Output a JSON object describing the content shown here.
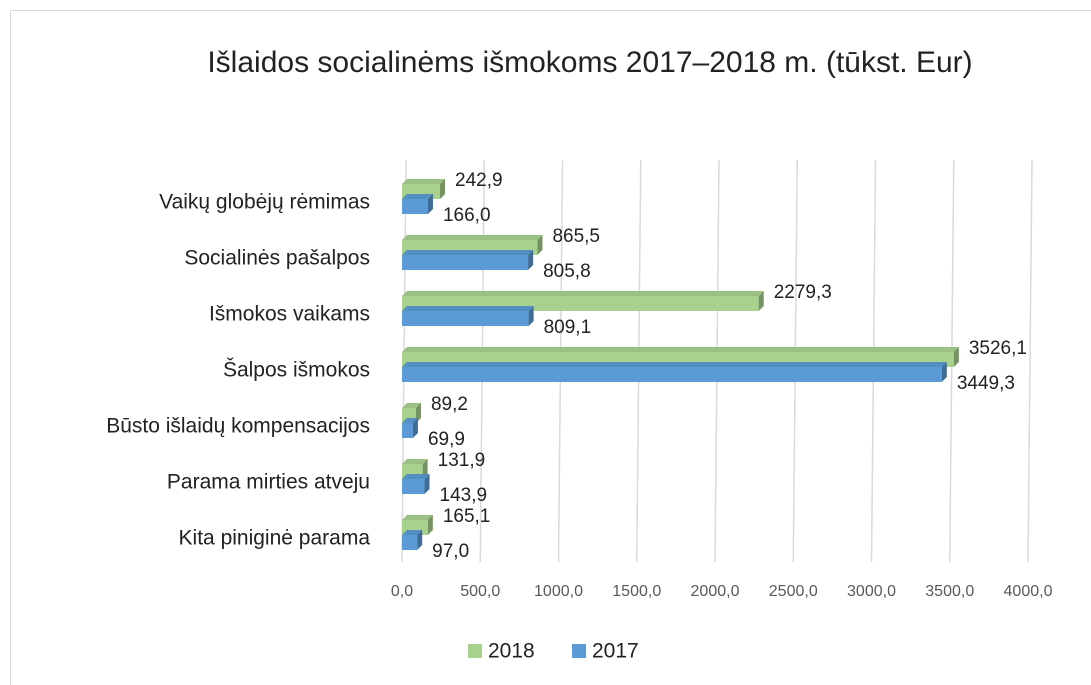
{
  "chart_data": {
    "type": "bar",
    "orientation": "horizontal",
    "title": "Išlaidos socialinėms išmokoms 2017–2018 m. (tūkst. Eur)",
    "categories": [
      "Vaikų globėjų rėmimas",
      "Socialinės pašalpos",
      "Išmokos vaikams",
      "Šalpos išmokos",
      "Būsto išlaidų kompensacijos",
      "Parama mirties atveju",
      "Kita piniginė parama"
    ],
    "series": [
      {
        "name": "2018",
        "color": "#a9d18e",
        "values": [
          242.9,
          865.5,
          2279.3,
          3526.1,
          89.2,
          131.9,
          165.1
        ],
        "value_labels": [
          "242,9",
          "865,5",
          "2279,3",
          "3526,1",
          "89,2",
          "131,9",
          "165,1"
        ]
      },
      {
        "name": "2017",
        "color": "#5b9bd5",
        "values": [
          166.0,
          805.8,
          809.1,
          3449.3,
          69.9,
          143.9,
          97.0
        ],
        "value_labels": [
          "166,0",
          "805,8",
          "809,1",
          "3449,3",
          "69,9",
          "143,9",
          "97,0"
        ]
      }
    ],
    "xlim": [
      0,
      4000
    ],
    "xticks": [
      {
        "value": 0,
        "label": "0,0"
      },
      {
        "value": 500,
        "label": "500,0"
      },
      {
        "value": 1000,
        "label": "1000,0"
      },
      {
        "value": 1500,
        "label": "1500,0"
      },
      {
        "value": 2000,
        "label": "2000,0"
      },
      {
        "value": 2500,
        "label": "2500,0"
      },
      {
        "value": 3000,
        "label": "3000,0"
      },
      {
        "value": 3500,
        "label": "3500,0"
      },
      {
        "value": 4000,
        "label": "4000,0"
      }
    ],
    "grid": true,
    "legend": "bottom"
  }
}
